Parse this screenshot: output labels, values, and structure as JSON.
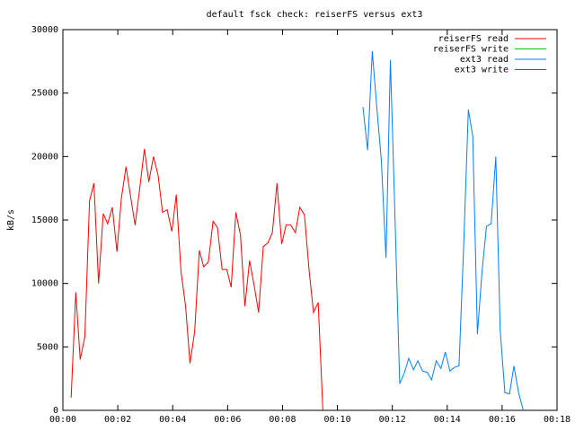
{
  "chart_data": {
    "type": "line",
    "title": "default fsck check: reiserFS versus ext3",
    "y_label": "kB/s",
    "xlim": [
      0,
      18
    ],
    "xticks": [
      {
        "value": 0,
        "label": "00:00"
      },
      {
        "value": 2,
        "label": "00:02"
      },
      {
        "value": 4,
        "label": "00:04"
      },
      {
        "value": 6,
        "label": "00:06"
      },
      {
        "value": 8,
        "label": "00:08"
      },
      {
        "value": 10,
        "label": "00:10"
      },
      {
        "value": 12,
        "label": "00:12"
      },
      {
        "value": 14,
        "label": "00:14"
      },
      {
        "value": 16,
        "label": "00:16"
      },
      {
        "value": 18,
        "label": "00:18"
      }
    ],
    "ylim": [
      0,
      30000
    ],
    "yticks": [
      0,
      5000,
      10000,
      15000,
      20000,
      25000,
      30000
    ],
    "legend": "top-right",
    "series": [
      {
        "name": "reiserFS read",
        "color": "#ff0000",
        "x": [
          0.3,
          0.47,
          0.63,
          0.8,
          0.97,
          1.13,
          1.3,
          1.47,
          1.63,
          1.8,
          1.97,
          2.13,
          2.3,
          2.47,
          2.63,
          2.8,
          2.97,
          3.13,
          3.3,
          3.47,
          3.63,
          3.8,
          3.97,
          4.13,
          4.3,
          4.47,
          4.63,
          4.8,
          4.97,
          5.13,
          5.3,
          5.47,
          5.63,
          5.8,
          5.97,
          6.13,
          6.3,
          6.47,
          6.63,
          6.8,
          6.97,
          7.13,
          7.3,
          7.47,
          7.63,
          7.8,
          7.97,
          8.13,
          8.3,
          8.47,
          8.63,
          8.8,
          8.97,
          9.13,
          9.3,
          9.47
        ],
        "values": [
          1000,
          9300,
          4000,
          5800,
          16500,
          17900,
          10000,
          15500,
          14700,
          16000,
          12500,
          16700,
          19200,
          16800,
          14600,
          17500,
          20600,
          18000,
          20000,
          18500,
          15600,
          15800,
          14100,
          17000,
          11000,
          8200,
          3700,
          6200,
          12600,
          11300,
          11700,
          14900,
          14400,
          11100,
          11100,
          9700,
          15600,
          13800,
          8200,
          11800,
          9800,
          7700,
          12900,
          13200,
          14000,
          17900,
          13100,
          14600,
          14600,
          14000,
          16000,
          15400,
          11000,
          7700,
          8500,
          0
        ]
      },
      {
        "name": "reiserFS write",
        "color": "#00c000",
        "x": [],
        "values": []
      },
      {
        "name": "ext3 read",
        "color": "#0080ff",
        "x": [
          10.93,
          11.1,
          11.27,
          11.43,
          11.6,
          11.77,
          11.93,
          12.1,
          12.27,
          12.43,
          12.6,
          12.77,
          12.93,
          13.1,
          13.27,
          13.43,
          13.6,
          13.77,
          13.93,
          14.1,
          14.27,
          14.43,
          14.6,
          14.77,
          14.93,
          15.1,
          15.27,
          15.43,
          15.6,
          15.77,
          15.93,
          16.1,
          16.27,
          16.43,
          16.6,
          16.77
        ],
        "values": [
          23900,
          20500,
          28300,
          24000,
          19700,
          12000,
          27600,
          15000,
          2100,
          2900,
          4100,
          3200,
          3900,
          3100,
          3000,
          2400,
          3900,
          3300,
          4600,
          3100,
          3400,
          3500,
          13000,
          23700,
          21600,
          6000,
          11000,
          14500,
          14700,
          20000,
          6300,
          1400,
          1300,
          3500,
          1400,
          0
        ]
      },
      {
        "name": "ext3 write",
        "color": "#c000ff",
        "x": [],
        "values": []
      }
    ]
  }
}
